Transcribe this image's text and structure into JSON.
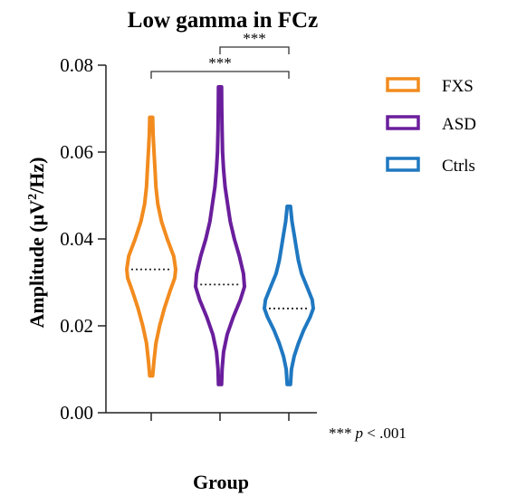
{
  "chart_data": {
    "type": "violin",
    "title": "Low gamma in FCz",
    "xlabel": "Group",
    "ylabel": {
      "prefix": "Amplitude (",
      "unit_main": "µV",
      "superscript": "2",
      "suffix": "/Hz)"
    },
    "ylim": [
      0,
      0.08
    ],
    "yticks": [
      "0.00",
      "0.02",
      "0.04",
      "0.06",
      "0.08"
    ],
    "categories": [
      "FXS",
      "ASD",
      "Ctrls"
    ],
    "series": [
      {
        "name": "FXS",
        "color": "#f28b1e",
        "min": 0.0085,
        "max": 0.068,
        "median": 0.033,
        "density": [
          [
            0.0085,
            1.5
          ],
          [
            0.012,
            3
          ],
          [
            0.016,
            5
          ],
          [
            0.02,
            9
          ],
          [
            0.024,
            14
          ],
          [
            0.028,
            20
          ],
          [
            0.031,
            25
          ],
          [
            0.033,
            26
          ],
          [
            0.036,
            24
          ],
          [
            0.04,
            17
          ],
          [
            0.044,
            11
          ],
          [
            0.048,
            7
          ],
          [
            0.052,
            5
          ],
          [
            0.056,
            4
          ],
          [
            0.06,
            3
          ],
          [
            0.064,
            2
          ],
          [
            0.068,
            1.5
          ]
        ]
      },
      {
        "name": "ASD",
        "color": "#6a1e9c",
        "min": 0.0065,
        "max": 0.075,
        "median": 0.0295,
        "density": [
          [
            0.0065,
            1.5
          ],
          [
            0.01,
            2
          ],
          [
            0.014,
            3.5
          ],
          [
            0.018,
            7
          ],
          [
            0.022,
            13
          ],
          [
            0.026,
            20
          ],
          [
            0.029,
            24
          ],
          [
            0.032,
            23
          ],
          [
            0.036,
            19
          ],
          [
            0.04,
            14
          ],
          [
            0.044,
            10
          ],
          [
            0.048,
            7.5
          ],
          [
            0.052,
            5
          ],
          [
            0.056,
            3.5
          ],
          [
            0.06,
            2.5
          ],
          [
            0.065,
            2
          ],
          [
            0.07,
            1.7
          ],
          [
            0.075,
            1.5
          ]
        ]
      },
      {
        "name": "Ctrls",
        "color": "#1f78c1",
        "min": 0.0065,
        "max": 0.0475,
        "median": 0.024,
        "density": [
          [
            0.0065,
            1.5
          ],
          [
            0.01,
            2.5
          ],
          [
            0.013,
            5
          ],
          [
            0.016,
            9
          ],
          [
            0.019,
            14
          ],
          [
            0.022,
            20
          ],
          [
            0.024,
            23
          ],
          [
            0.026,
            22
          ],
          [
            0.029,
            17
          ],
          [
            0.032,
            12
          ],
          [
            0.035,
            9
          ],
          [
            0.038,
            7
          ],
          [
            0.041,
            5
          ],
          [
            0.044,
            3
          ],
          [
            0.0475,
            1.5
          ]
        ]
      }
    ],
    "significance": [
      {
        "from": "ASD",
        "to": "Ctrls",
        "label": "***"
      },
      {
        "from": "FXS",
        "to": "Ctrls",
        "label": "***"
      }
    ],
    "note": {
      "stars": "***",
      "p": "p",
      "rest": " < .001"
    },
    "legend_position": "top-right",
    "grid": false
  }
}
